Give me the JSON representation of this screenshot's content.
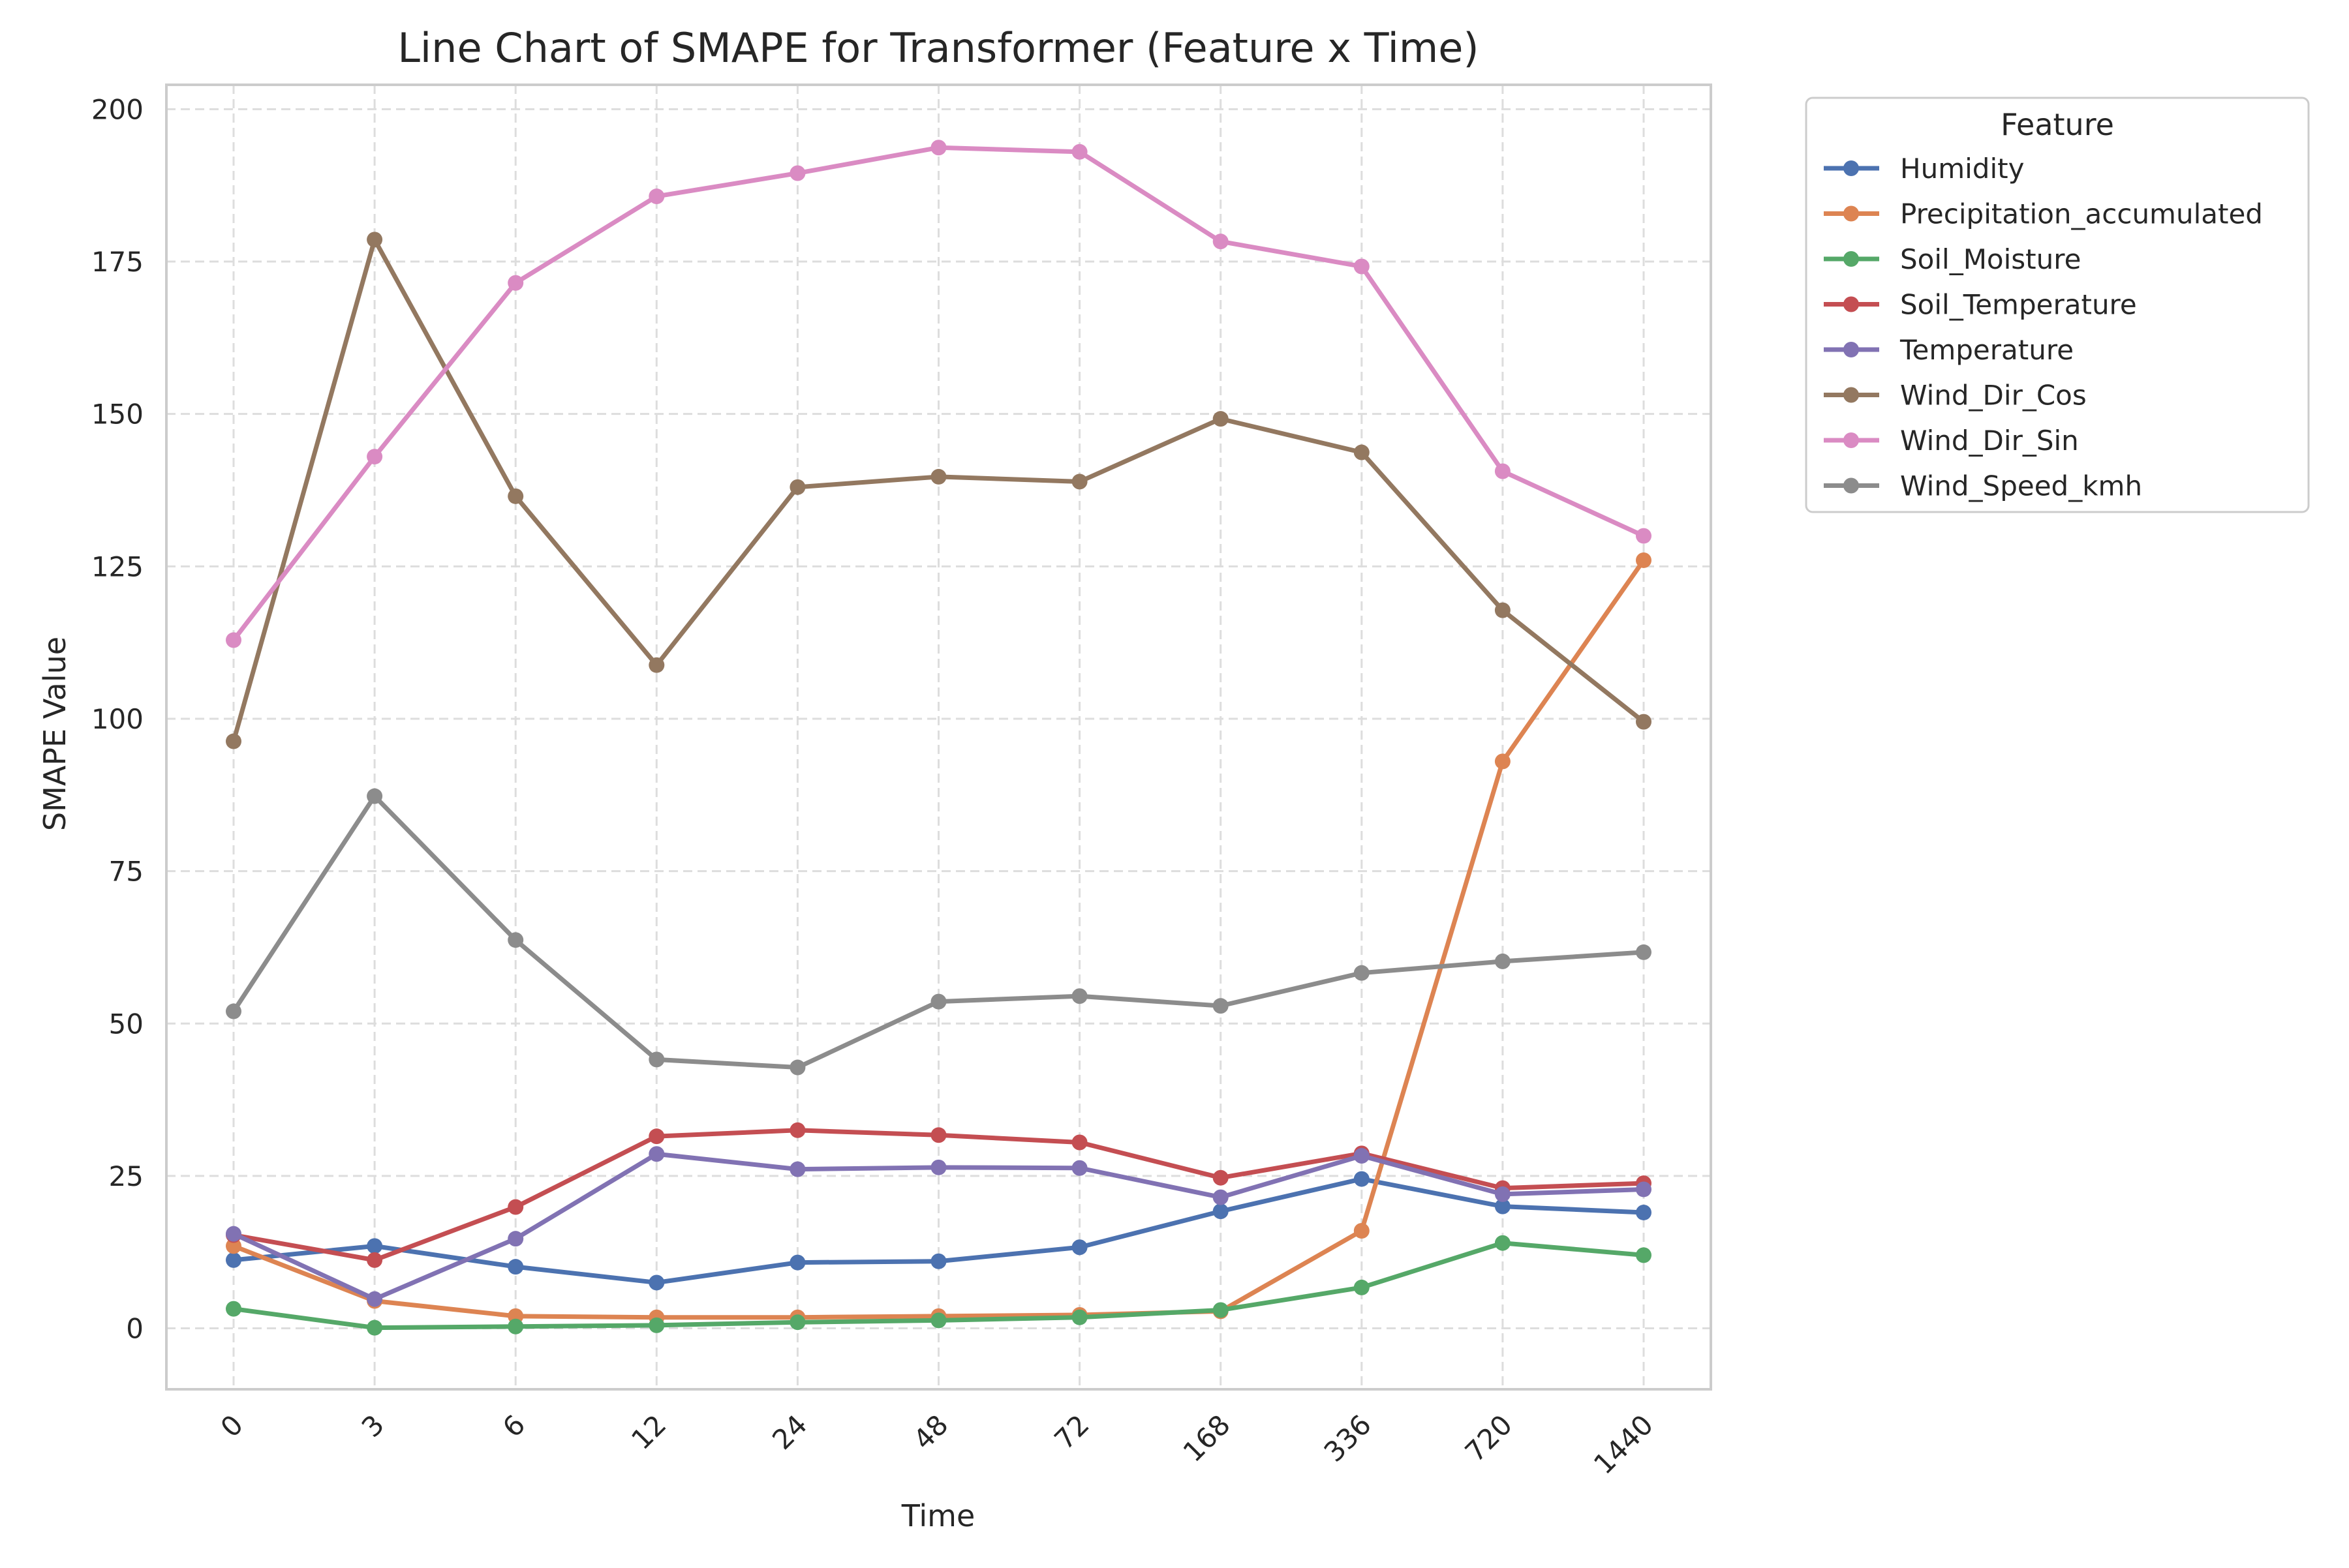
{
  "chart_data": {
    "type": "line",
    "title": "Line Chart of SMAPE for Transformer (Feature x Time)",
    "xlabel": "Time",
    "ylabel": "SMAPE Value",
    "categories": [
      "0",
      "3",
      "6",
      "12",
      "24",
      "48",
      "72",
      "168",
      "336",
      "720",
      "1440"
    ],
    "ylim": [
      -10,
      204
    ],
    "yticks": [
      0,
      25,
      50,
      75,
      100,
      125,
      150,
      175,
      200
    ],
    "grid": true,
    "legend_position": "outside-right",
    "legend_title": "Feature",
    "series": [
      {
        "name": "Humidity",
        "color": "#4c72b0",
        "values": [
          11.2,
          13.5,
          10.1,
          7.5,
          10.8,
          11.0,
          13.3,
          19.2,
          24.5,
          20.0,
          19.0
        ]
      },
      {
        "name": "Precipitation_accumulated",
        "color": "#dd8452",
        "values": [
          13.5,
          4.5,
          2.0,
          1.8,
          1.8,
          2.0,
          2.2,
          2.8,
          16.0,
          93.0,
          126.0
        ]
      },
      {
        "name": "Soil_Moisture",
        "color": "#55a868",
        "values": [
          3.2,
          0.1,
          0.3,
          0.5,
          1.0,
          1.3,
          1.8,
          3.0,
          6.7,
          14.0,
          12.0
        ]
      },
      {
        "name": "Soil_Temperature",
        "color": "#c44e52",
        "values": [
          15.3,
          11.2,
          19.9,
          31.5,
          32.5,
          31.7,
          30.5,
          24.7,
          28.7,
          23.0,
          23.8
        ]
      },
      {
        "name": "Temperature",
        "color": "#8172b3",
        "values": [
          15.5,
          4.8,
          14.7,
          28.6,
          26.1,
          26.4,
          26.3,
          21.5,
          28.3,
          22.0,
          22.8
        ]
      },
      {
        "name": "Wind_Dir_Cos",
        "color": "#937860",
        "values": [
          96.3,
          178.6,
          136.5,
          108.8,
          138.0,
          139.7,
          138.9,
          149.2,
          143.7,
          117.8,
          99.5
        ]
      },
      {
        "name": "Wind_Dir_Sin",
        "color": "#da8bc3",
        "values": [
          112.9,
          143.0,
          171.5,
          185.7,
          189.5,
          193.7,
          193.0,
          178.3,
          174.2,
          140.6,
          130.0
        ]
      },
      {
        "name": "Wind_Speed_kmh",
        "color": "#8c8c8c",
        "values": [
          52.0,
          87.3,
          63.7,
          44.1,
          42.8,
          53.6,
          54.5,
          52.9,
          58.3,
          60.2,
          61.7
        ]
      }
    ]
  }
}
